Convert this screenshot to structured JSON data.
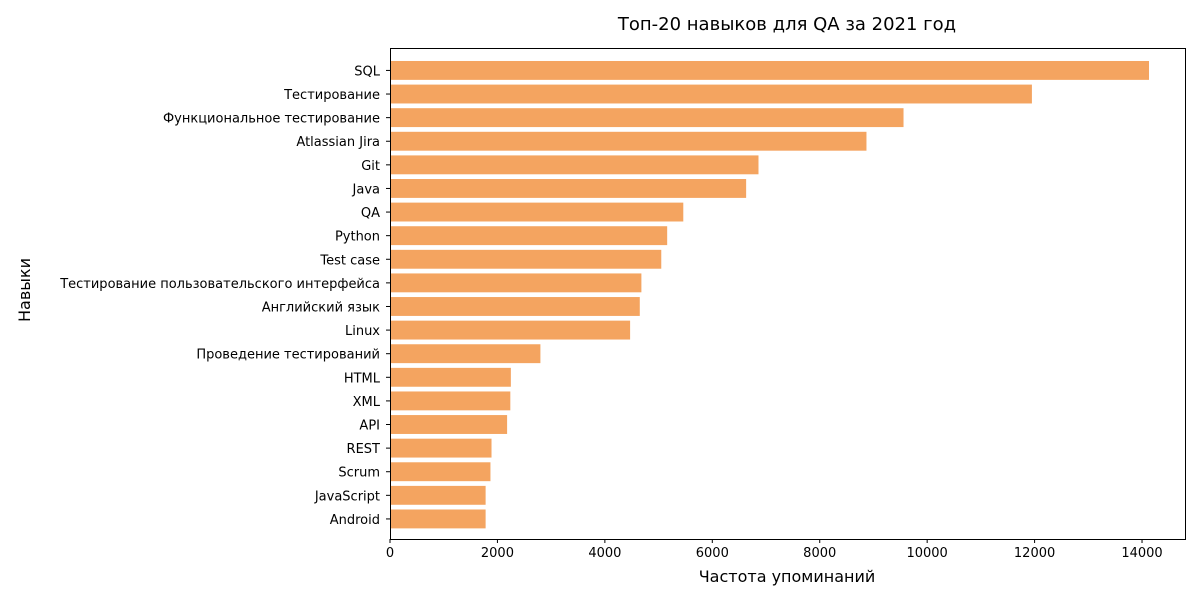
{
  "chart_data": {
    "type": "bar",
    "orientation": "horizontal",
    "title": "Топ-20 навыков для QA за 2021 год",
    "xlabel": "Частота упоминаний",
    "ylabel": "Навыки",
    "xlim": [
      0,
      14800
    ],
    "xticks": [
      0,
      2000,
      4000,
      6000,
      8000,
      10000,
      12000,
      14000
    ],
    "xtick_labels": [
      "0",
      "2000",
      "4000",
      "6000",
      "8000",
      "10000",
      "12000",
      "14000"
    ],
    "grid": false,
    "bar_color": "#f4a460",
    "categories": [
      "SQL",
      "Тестирование",
      "Функциональное тестирование",
      "Atlassian Jira",
      "Git",
      "Java",
      "QA",
      "Python",
      "Test case",
      "Тестирование пользовательского интерфейса",
      "Английский язык",
      "Linux",
      "Проведение тестирований",
      "HTML",
      "XML",
      "API",
      "REST",
      "Scrum",
      "JavaScript",
      "Android"
    ],
    "values": [
      14130,
      11950,
      9560,
      8870,
      6860,
      6630,
      5460,
      5160,
      5050,
      4680,
      4650,
      4470,
      2800,
      2250,
      2240,
      2180,
      1890,
      1870,
      1780,
      1780
    ]
  }
}
